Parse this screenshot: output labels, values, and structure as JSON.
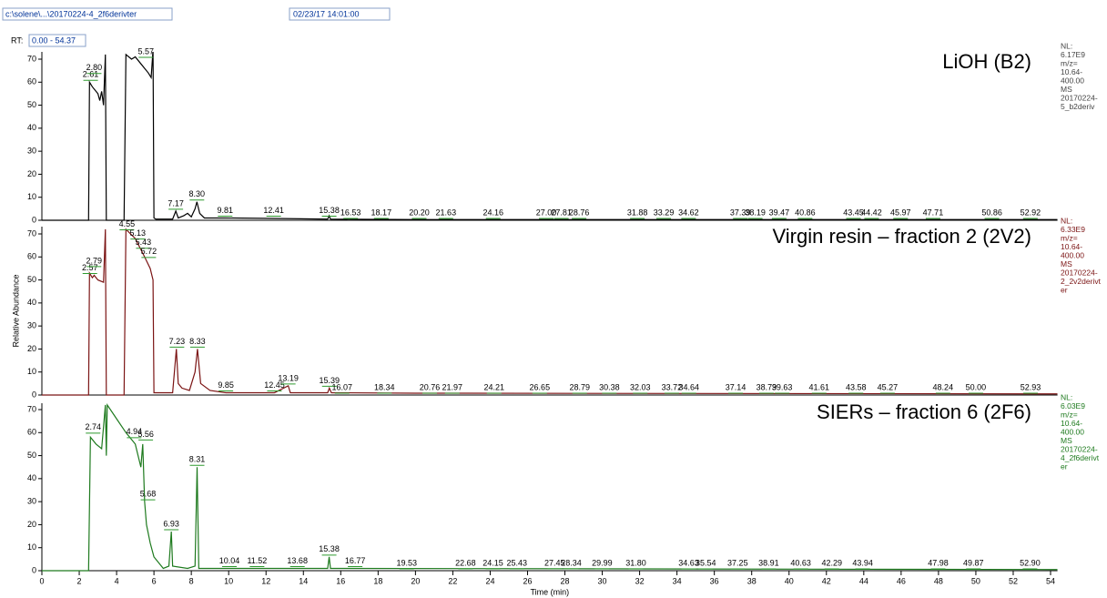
{
  "header": {
    "file": "c:\\solene\\...\\20170224-4_2f6derivter",
    "date": "02/23/17 14:01:00",
    "rt_label": "RT:",
    "rt_range": "0.00 - 54.37"
  },
  "chart_data": [
    {
      "type": "line",
      "title": "LiOH (B2)",
      "color": "#000000",
      "info_color": "#444444",
      "info": [
        "NL:",
        "6.17E9",
        "m/z=",
        "10.64-",
        "400.00",
        "MS",
        "20170224-",
        "5_b2deriv"
      ],
      "xlim": [
        0,
        54.37
      ],
      "ylim": [
        0,
        70
      ],
      "yticks": [
        0,
        10,
        20,
        30,
        40,
        50,
        60,
        70
      ],
      "x": [
        0,
        2.5,
        2.55,
        2.7,
        2.9,
        3.0,
        3.1,
        3.2,
        3.3,
        3.4,
        3.45,
        3.5,
        4.4,
        4.5,
        4.8,
        5.0,
        5.3,
        5.5,
        5.7,
        5.85,
        5.95,
        6.0,
        6.1,
        7.0,
        7.17,
        7.3,
        7.6,
        7.8,
        8.0,
        8.2,
        8.3,
        8.45,
        8.7,
        9.81,
        12.41,
        15.3,
        15.38,
        15.45,
        20,
        30,
        40,
        54.37
      ],
      "values": [
        0,
        0,
        60,
        58,
        56,
        55,
        52,
        56,
        50,
        72,
        0,
        0,
        0,
        72,
        70,
        71,
        68,
        66,
        64,
        62,
        74,
        1,
        0.5,
        0.5,
        4,
        1,
        2,
        3,
        1.5,
        5,
        8,
        3,
        1,
        1,
        0.8,
        0.5,
        2,
        0.5,
        0.3,
        0.3,
        0.3,
        0.3
      ],
      "peaks": [
        {
          "x": 2.61,
          "y": 60,
          "label": "2.61"
        },
        {
          "x": 2.8,
          "y": 63,
          "label": "2.80"
        },
        {
          "x": 5.57,
          "y": 70,
          "label": "5.57"
        },
        {
          "x": 7.17,
          "y": 4,
          "label": "7.17"
        },
        {
          "x": 8.3,
          "y": 8,
          "label": "8.30"
        },
        {
          "x": 9.81,
          "y": 1,
          "label": "9.81"
        },
        {
          "x": 12.41,
          "y": 1,
          "label": "12.41"
        },
        {
          "x": 15.38,
          "y": 1,
          "label": "15.38"
        },
        {
          "x": 16.53,
          "y": 0,
          "label": "16.53"
        },
        {
          "x": 18.17,
          "y": 0,
          "label": "18.17"
        },
        {
          "x": 20.2,
          "y": 0,
          "label": "20.20"
        },
        {
          "x": 21.63,
          "y": 0,
          "label": "21.63"
        },
        {
          "x": 24.16,
          "y": 0,
          "label": "24.16"
        },
        {
          "x": 27.0,
          "y": 0,
          "label": "27.00"
        },
        {
          "x": 27.81,
          "y": 0,
          "label": "27.81"
        },
        {
          "x": 28.76,
          "y": 0,
          "label": "28.76"
        },
        {
          "x": 31.88,
          "y": 0,
          "label": "31.88"
        },
        {
          "x": 33.29,
          "y": 0,
          "label": "33.29"
        },
        {
          "x": 34.62,
          "y": 0,
          "label": "34.62"
        },
        {
          "x": 37.39,
          "y": 0,
          "label": "37.39"
        },
        {
          "x": 38.19,
          "y": 0,
          "label": "38.19"
        },
        {
          "x": 39.47,
          "y": 0,
          "label": "39.47"
        },
        {
          "x": 40.86,
          "y": 0,
          "label": "40.86"
        },
        {
          "x": 43.45,
          "y": 0,
          "label": "43.45"
        },
        {
          "x": 44.42,
          "y": 0,
          "label": "44.42"
        },
        {
          "x": 45.97,
          "y": 0,
          "label": "45.97"
        },
        {
          "x": 47.71,
          "y": 0,
          "label": "47.71"
        },
        {
          "x": 50.86,
          "y": 0,
          "label": "50.86"
        },
        {
          "x": 52.92,
          "y": 0,
          "label": "52.92"
        }
      ]
    },
    {
      "type": "line",
      "title": "Virgin resin – fraction 2 (2V2)",
      "color": "#7b1414",
      "info_color": "#7b1414",
      "ylabel": "Relative Abundance",
      "info": [
        "NL:",
        "6.33E9",
        "m/z=",
        "10.64-",
        "400.00",
        "MS",
        "20170224-",
        "2_2v2derivt",
        "er"
      ],
      "xlim": [
        0,
        54.37
      ],
      "ylim": [
        0,
        70
      ],
      "yticks": [
        0,
        10,
        20,
        30,
        40,
        50,
        60,
        70
      ],
      "x": [
        0,
        2.5,
        2.55,
        2.7,
        2.8,
        3.0,
        3.3,
        3.4,
        3.45,
        4.4,
        4.5,
        5.0,
        5.5,
        5.8,
        5.95,
        6.0,
        6.5,
        7.0,
        7.2,
        7.3,
        7.5,
        7.9,
        8.2,
        8.33,
        8.5,
        9.0,
        9.85,
        12.45,
        13.19,
        13.3,
        15.3,
        15.39,
        15.5,
        20,
        54.37
      ],
      "values": [
        0,
        0,
        53,
        51,
        52,
        50,
        49,
        72,
        0,
        0,
        72,
        68,
        60,
        55,
        50,
        1,
        1,
        1,
        20,
        5,
        3,
        2,
        10,
        20,
        5,
        2,
        1,
        1,
        4,
        1,
        1,
        3,
        1,
        0.8,
        0.5
      ],
      "peaks": [
        {
          "x": 2.57,
          "y": 52,
          "label": "2.57"
        },
        {
          "x": 2.79,
          "y": 55,
          "label": "2.79"
        },
        {
          "x": 4.55,
          "y": 71,
          "label": "4.55"
        },
        {
          "x": 5.13,
          "y": 67,
          "label": "5.13"
        },
        {
          "x": 5.43,
          "y": 63,
          "label": "5.43"
        },
        {
          "x": 5.72,
          "y": 59,
          "label": "5.72"
        },
        {
          "x": 7.23,
          "y": 20,
          "label": "7.23"
        },
        {
          "x": 8.33,
          "y": 20,
          "label": "8.33"
        },
        {
          "x": 9.85,
          "y": 1,
          "label": "9.85"
        },
        {
          "x": 12.45,
          "y": 1,
          "label": "12.45"
        },
        {
          "x": 13.19,
          "y": 4,
          "label": "13.19"
        },
        {
          "x": 15.39,
          "y": 3,
          "label": "15.39"
        },
        {
          "x": 16.07,
          "y": 0,
          "label": "16.07"
        },
        {
          "x": 18.34,
          "y": 0,
          "label": "18.34"
        },
        {
          "x": 20.76,
          "y": 0,
          "label": "20.76"
        },
        {
          "x": 21.97,
          "y": 0,
          "label": "21.97"
        },
        {
          "x": 24.21,
          "y": 0,
          "label": "24.21"
        },
        {
          "x": 26.65,
          "y": 0,
          "label": "26.65"
        },
        {
          "x": 28.79,
          "y": 0,
          "label": "28.79"
        },
        {
          "x": 30.38,
          "y": 0,
          "label": "30.38"
        },
        {
          "x": 32.03,
          "y": 0,
          "label": "32.03"
        },
        {
          "x": 33.72,
          "y": 0,
          "label": "33.72"
        },
        {
          "x": 34.64,
          "y": 0,
          "label": "34.64"
        },
        {
          "x": 37.14,
          "y": 0,
          "label": "37.14"
        },
        {
          "x": 38.79,
          "y": 0,
          "label": "38.79"
        },
        {
          "x": 39.63,
          "y": 0,
          "label": "39.63"
        },
        {
          "x": 41.61,
          "y": 0,
          "label": "41.61"
        },
        {
          "x": 43.58,
          "y": 0,
          "label": "43.58"
        },
        {
          "x": 45.27,
          "y": 0,
          "label": "45.27"
        },
        {
          "x": 48.24,
          "y": 0,
          "label": "48.24"
        },
        {
          "x": 50.0,
          "y": 0,
          "label": "50.00"
        },
        {
          "x": 52.93,
          "y": 0,
          "label": "52.93"
        }
      ]
    },
    {
      "type": "line",
      "title": "SIERs – fraction 6 (2F6)",
      "color": "#1e7a1e",
      "info_color": "#1e7a1e",
      "xlabel": "Time (min)",
      "info": [
        "NL:",
        "6.03E9",
        "m/z=",
        "10.64-",
        "400.00",
        "MS",
        "20170224-",
        "4_2f6derivt",
        "er"
      ],
      "xlim": [
        0,
        54.37
      ],
      "ylim": [
        0,
        70
      ],
      "yticks": [
        0,
        10,
        20,
        30,
        40,
        50,
        60,
        70
      ],
      "xticks": [
        0,
        2,
        4,
        6,
        8,
        10,
        12,
        14,
        16,
        18,
        20,
        22,
        24,
        26,
        28,
        30,
        32,
        34,
        36,
        38,
        40,
        42,
        44,
        46,
        48,
        50,
        52,
        54
      ],
      "x": [
        0,
        2.5,
        2.6,
        2.9,
        3.2,
        3.4,
        3.45,
        3.5,
        4.0,
        4.5,
        5.0,
        5.3,
        5.4,
        5.5,
        5.6,
        5.8,
        6.0,
        6.5,
        6.8,
        6.93,
        7.0,
        7.8,
        8.2,
        8.31,
        8.4,
        10,
        11.5,
        15.3,
        15.38,
        15.45,
        54.37
      ],
      "values": [
        0,
        0,
        58,
        55,
        53,
        72,
        50,
        72,
        66,
        60,
        55,
        45,
        55,
        30,
        20,
        12,
        6,
        1,
        2,
        17,
        2,
        1,
        2,
        45,
        1,
        1,
        1,
        1,
        6,
        1,
        0.5
      ],
      "peaks": [
        {
          "x": 2.74,
          "y": 59,
          "label": "2.74"
        },
        {
          "x": 4.94,
          "y": 57,
          "label": "4.94"
        },
        {
          "x": 5.56,
          "y": 56,
          "label": "5.56"
        },
        {
          "x": 5.68,
          "y": 30,
          "label": "5.68"
        },
        {
          "x": 6.93,
          "y": 17,
          "label": "6.93"
        },
        {
          "x": 8.31,
          "y": 45,
          "label": "8.31"
        },
        {
          "x": 10.04,
          "y": 1,
          "label": "10.04"
        },
        {
          "x": 11.52,
          "y": 1,
          "label": "11.52"
        },
        {
          "x": 13.68,
          "y": 1,
          "label": "13.68"
        },
        {
          "x": 15.38,
          "y": 6,
          "label": "15.38"
        },
        {
          "x": 16.77,
          "y": 1,
          "label": "16.77"
        },
        {
          "x": 19.53,
          "y": 0,
          "label": "19.53"
        },
        {
          "x": 22.68,
          "y": 0,
          "label": "22.68"
        },
        {
          "x": 24.15,
          "y": 0,
          "label": "24.15"
        },
        {
          "x": 25.43,
          "y": 0,
          "label": "25.43"
        },
        {
          "x": 27.45,
          "y": 0,
          "label": "27.45"
        },
        {
          "x": 28.34,
          "y": 0,
          "label": "28.34"
        },
        {
          "x": 29.99,
          "y": 0,
          "label": "29.99"
        },
        {
          "x": 31.8,
          "y": 0,
          "label": "31.80"
        },
        {
          "x": 34.63,
          "y": 0,
          "label": "34.63"
        },
        {
          "x": 35.54,
          "y": 0,
          "label": "35.54"
        },
        {
          "x": 37.25,
          "y": 0,
          "label": "37.25"
        },
        {
          "x": 38.91,
          "y": 0,
          "label": "38.91"
        },
        {
          "x": 40.63,
          "y": 0,
          "label": "40.63"
        },
        {
          "x": 42.29,
          "y": 0,
          "label": "42.29"
        },
        {
          "x": 43.94,
          "y": 0,
          "label": "43.94"
        },
        {
          "x": 47.98,
          "y": 0,
          "label": "47.98"
        },
        {
          "x": 49.87,
          "y": 0,
          "label": "49.87"
        },
        {
          "x": 52.9,
          "y": 0,
          "label": "52.90"
        }
      ]
    }
  ]
}
